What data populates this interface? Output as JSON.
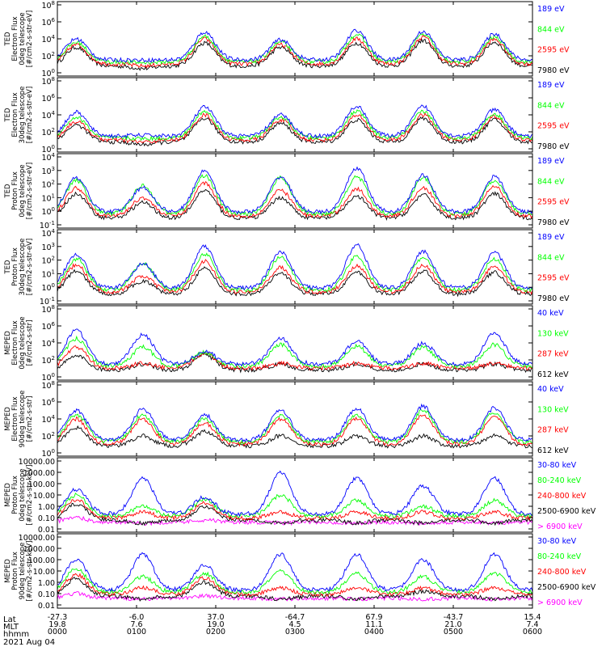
{
  "chart_data": {
    "type": "line",
    "x": [
      "0000",
      "0100",
      "0200",
      "0300",
      "0400",
      "0500",
      "0600"
    ],
    "time_labels": {
      "row_labels": [
        "Lat",
        "MLT",
        "hhmm"
      ],
      "lat": [
        "-27.3",
        "-6.0",
        "37.0",
        "-64.7",
        "67.9",
        "-43.7",
        "15.4"
      ],
      "mlt": [
        "19.8",
        "7.6",
        "19.0",
        "4.5",
        "11.1",
        "21.0",
        "7.4"
      ],
      "hhmm": [
        "0000",
        "0100",
        "0200",
        "0300",
        "0400",
        "0500",
        "0600"
      ],
      "date": "2021 Aug 04"
    },
    "panels": [
      {
        "ylabel": [
          "TED",
          "Electron Flux",
          "0deg telescope",
          "[#/cm2-s-str-eV]"
        ],
        "yticks": [
          "10^0",
          "10^2",
          "10^4",
          "10^6",
          "10^8"
        ],
        "ylim": [
          0,
          8
        ],
        "series": [
          {
            "name": "7980 eV",
            "color": "#000000",
            "log_peaks": [
              3.0,
              0.5,
              3.5,
              3.0,
              3.5,
              3.8,
              3.6
            ]
          },
          {
            "name": "2595 eV",
            "color": "#ff0000",
            "log_peaks": [
              3.3,
              0.8,
              4.0,
              3.3,
              4.0,
              4.2,
              3.9
            ]
          },
          {
            "name": "844 eV",
            "color": "#00ff00",
            "log_peaks": [
              3.6,
              1.2,
              4.3,
              3.6,
              4.5,
              4.5,
              4.2
            ]
          },
          {
            "name": "189 eV",
            "color": "#0000ff",
            "log_peaks": [
              4.0,
              1.5,
              4.8,
              3.9,
              5.0,
              4.9,
              4.6
            ]
          }
        ]
      },
      {
        "ylabel": [
          "TED",
          "Electron Flux",
          "30deg telescope",
          "[#/cm2-s-str-eV]"
        ],
        "yticks": [
          "10^0",
          "10^2",
          "10^4",
          "10^6",
          "10^8"
        ],
        "ylim": [
          0,
          8
        ],
        "series": [
          {
            "name": "7980 eV",
            "color": "#000000",
            "log_peaks": [
              2.8,
              0.5,
              3.6,
              3.0,
              3.4,
              3.6,
              3.4
            ]
          },
          {
            "name": "2595 eV",
            "color": "#ff0000",
            "log_peaks": [
              3.2,
              0.8,
              4.0,
              3.4,
              3.9,
              4.0,
              3.8
            ]
          },
          {
            "name": "844 eV",
            "color": "#00ff00",
            "log_peaks": [
              3.7,
              1.2,
              4.4,
              3.7,
              4.4,
              4.4,
              4.1
            ]
          },
          {
            "name": "189 eV",
            "color": "#0000ff",
            "log_peaks": [
              4.3,
              1.6,
              4.9,
              4.0,
              5.0,
              5.0,
              4.6
            ]
          }
        ]
      },
      {
        "ylabel": [
          "TED",
          "Proton Flux",
          "0deg telescope",
          "[#/cm2-s-str-eV]"
        ],
        "yticks": [
          "10^-1",
          "10^0",
          "10^1",
          "10^2",
          "10^3",
          "10^4"
        ],
        "ylim": [
          -1,
          4.5
        ],
        "series": [
          {
            "name": "7980 eV",
            "color": "#000000",
            "log_peaks": [
              1.5,
              0.8,
              1.8,
              1.2,
              1.3,
              1.4,
              1.5
            ]
          },
          {
            "name": "2595 eV",
            "color": "#ff0000",
            "log_peaks": [
              2.0,
              1.2,
              2.4,
              1.8,
              1.9,
              2.0,
              2.1
            ]
          },
          {
            "name": "844 eV",
            "color": "#00ff00",
            "log_peaks": [
              2.6,
              2.2,
              3.0,
              2.8,
              2.9,
              2.8,
              2.6
            ]
          },
          {
            "name": "189 eV",
            "color": "#0000ff",
            "log_peaks": [
              2.8,
              2.0,
              3.4,
              2.9,
              3.6,
              3.0,
              2.9
            ]
          }
        ]
      },
      {
        "ylabel": [
          "TED",
          "Proton Flux",
          "30deg telescope",
          "[#/cm2-s-str-eV]"
        ],
        "yticks": [
          "10^-1",
          "10^0",
          "10^1",
          "10^2",
          "10^3",
          "10^4"
        ],
        "ylim": [
          -1,
          4.5
        ],
        "series": [
          {
            "name": "7980 eV",
            "color": "#000000",
            "log_peaks": [
              1.4,
              0.6,
              1.6,
              1.2,
              1.3,
              1.4,
              1.3
            ]
          },
          {
            "name": "2595 eV",
            "color": "#ff0000",
            "log_peaks": [
              1.9,
              1.0,
              2.2,
              1.7,
              1.8,
              1.9,
              1.8
            ]
          },
          {
            "name": "844 eV",
            "color": "#00ff00",
            "log_peaks": [
              2.4,
              2.0,
              2.8,
              2.6,
              2.6,
              2.5,
              2.4
            ]
          },
          {
            "name": "189 eV",
            "color": "#0000ff",
            "log_peaks": [
              2.8,
              2.0,
              3.4,
              3.0,
              3.5,
              3.0,
              2.9
            ]
          }
        ]
      },
      {
        "ylabel": [
          "MEPED",
          "Electron Flux",
          "0deg telescope",
          "[#/cm2-s-str]"
        ],
        "yticks": [
          "10^0",
          "10^2",
          "10^4",
          "10^6",
          "10^8"
        ],
        "ylim": [
          0,
          8
        ],
        "series": [
          {
            "name": "612 keV",
            "color": "#000000",
            "log_peaks": [
              2.5,
              1.5,
              2.6,
              1.5,
              1.5,
              1.5,
              1.5
            ]
          },
          {
            "name": "287 keV",
            "color": "#ff0000",
            "log_peaks": [
              3.5,
              1.6,
              2.8,
              1.6,
              1.6,
              1.6,
              1.6
            ]
          },
          {
            "name": "130 keV",
            "color": "#00ff00",
            "log_peaks": [
              4.5,
              3.5,
              2.9,
              3.8,
              3.6,
              3.5,
              3.8
            ]
          },
          {
            "name": "40 keV",
            "color": "#0000ff",
            "log_peaks": [
              5.5,
              5.0,
              3.0,
              4.6,
              4.2,
              4.0,
              5.2
            ]
          }
        ]
      },
      {
        "ylabel": [
          "MEPED",
          "Electron Flux",
          "90deg telescope",
          "[#/cm2-s-str]"
        ],
        "yticks": [
          "10^0",
          "10^2",
          "10^4",
          "10^6",
          "10^8"
        ],
        "ylim": [
          0,
          8
        ],
        "series": [
          {
            "name": "612 keV",
            "color": "#000000",
            "log_peaks": [
              3.0,
              2.0,
              2.5,
              2.0,
              2.0,
              2.0,
              2.0
            ]
          },
          {
            "name": "287 keV",
            "color": "#ff0000",
            "log_peaks": [
              4.0,
              4.0,
              3.5,
              4.0,
              4.0,
              4.5,
              4.2
            ]
          },
          {
            "name": "130 keV",
            "color": "#00ff00",
            "log_peaks": [
              4.5,
              4.5,
              4.0,
              4.5,
              4.5,
              5.0,
              4.8
            ]
          },
          {
            "name": "40 keV",
            "color": "#0000ff",
            "log_peaks": [
              5.0,
              5.2,
              4.5,
              5.0,
              5.2,
              5.5,
              5.3
            ]
          }
        ]
      },
      {
        "ylabel": [
          "MEPED",
          "Proton Flux",
          "0deg telescope",
          "[#/cm2-s-str-keV]"
        ],
        "yticks": [
          "0.01",
          "0.10",
          "1.00",
          "10.00",
          "100.00",
          "1000.00",
          "10000.00"
        ],
        "ylim": [
          -2,
          4
        ],
        "series": [
          {
            "name": "> 6900 keV",
            "color": "#ff00ff",
            "log_peaks": [
              -1.0,
              -1.5,
              -1.2,
              -1.5,
              -1.5,
              -1.5,
              -1.5
            ]
          },
          {
            "name": "2500-6900 keV",
            "color": "#000000",
            "log_peaks": [
              0.2,
              -1.5,
              0.0,
              -1.5,
              -1.5,
              -1.5,
              -1.5
            ]
          },
          {
            "name": "240-800 keV",
            "color": "#ff0000",
            "log_peaks": [
              0.6,
              -0.5,
              0.3,
              -0.5,
              -0.5,
              -0.5,
              -0.5
            ]
          },
          {
            "name": "80-240 keV",
            "color": "#00ff00",
            "log_peaks": [
              1.0,
              0.0,
              0.6,
              1.0,
              0.5,
              0.0,
              0.5
            ]
          },
          {
            "name": "30-80 keV",
            "color": "#0000ff",
            "log_peaks": [
              1.5,
              2.5,
              0.8,
              3.0,
              2.5,
              1.8,
              2.5
            ]
          }
        ]
      },
      {
        "ylabel": [
          "MEPED",
          "Proton Flux",
          "90deg telescope",
          "[#/cm2-s-str-keV]"
        ],
        "yticks": [
          "0.01",
          "0.10",
          "1.00",
          "10.00",
          "100.00",
          "1000.00",
          "10000.00"
        ],
        "ylim": [
          -2,
          4
        ],
        "series": [
          {
            "name": "> 6900 keV",
            "color": "#ff00ff",
            "log_peaks": [
              -1.0,
              -1.5,
              -1.2,
              -1.5,
              -1.5,
              -1.5,
              -1.5
            ]
          },
          {
            "name": "2500-6900 keV",
            "color": "#000000",
            "log_peaks": [
              0.3,
              -1.5,
              0.0,
              -1.5,
              -1.5,
              -0.8,
              -1.5
            ]
          },
          {
            "name": "240-800 keV",
            "color": "#ff0000",
            "log_peaks": [
              0.7,
              -0.5,
              0.4,
              -0.5,
              -0.5,
              -0.5,
              -0.5
            ]
          },
          {
            "name": "80-240 keV",
            "color": "#00ff00",
            "log_peaks": [
              1.2,
              0.5,
              0.8,
              1.0,
              0.8,
              0.5,
              0.8
            ]
          },
          {
            "name": "30-80 keV",
            "color": "#0000ff",
            "log_peaks": [
              2.0,
              2.5,
              1.5,
              2.5,
              2.5,
              2.0,
              2.5
            ]
          }
        ]
      }
    ]
  }
}
